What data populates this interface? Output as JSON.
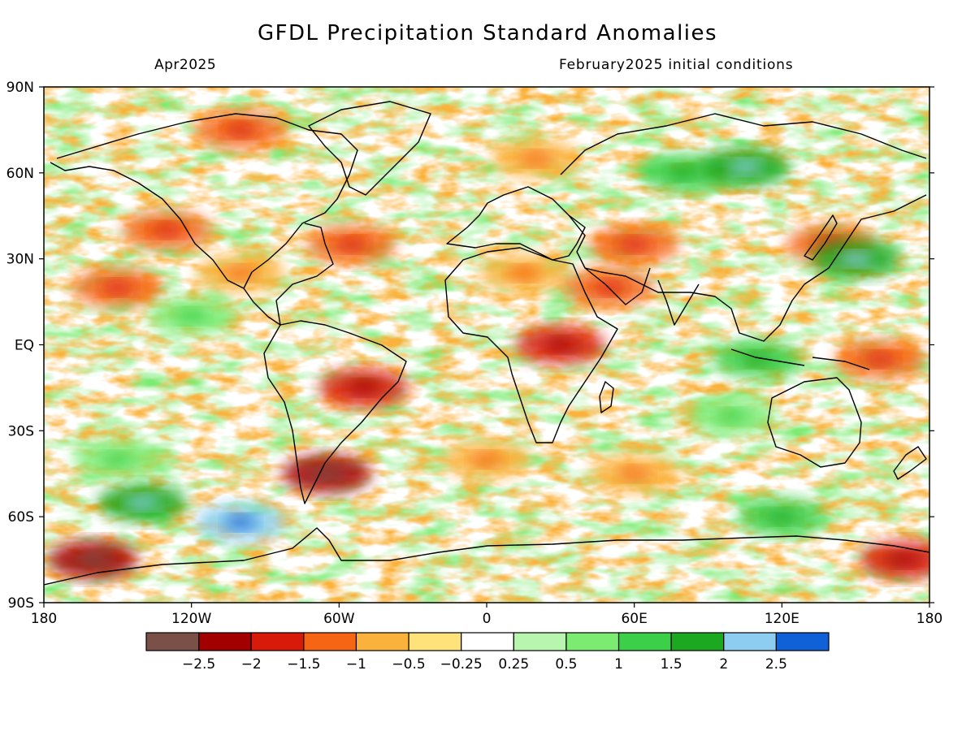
{
  "header": {
    "title": "GFDL Precipitation Standard Anomalies",
    "valid_month": "Apr2025",
    "init_label": "February2025 initial conditions"
  },
  "map": {
    "projection": "latlon",
    "lon_range": [
      -180,
      180
    ],
    "lat_range": [
      -90,
      90
    ],
    "lat_ticks": [
      {
        "value": 90,
        "label": "90N"
      },
      {
        "value": 60,
        "label": "60N"
      },
      {
        "value": 30,
        "label": "30N"
      },
      {
        "value": 0,
        "label": "EQ"
      },
      {
        "value": -30,
        "label": "30S"
      },
      {
        "value": -60,
        "label": "60S"
      },
      {
        "value": -90,
        "label": "90S"
      }
    ],
    "lon_ticks": [
      {
        "value": -180,
        "label": "180"
      },
      {
        "value": -120,
        "label": "120W"
      },
      {
        "value": -60,
        "label": "60W"
      },
      {
        "value": 0,
        "label": "0"
      },
      {
        "value": 60,
        "label": "60E"
      },
      {
        "value": 120,
        "label": "120E"
      },
      {
        "value": 180,
        "label": "180"
      }
    ],
    "grid": false,
    "colorbar": {
      "colors": [
        "#7a5048",
        "#a20000",
        "#d81a0a",
        "#f56514",
        "#fbb23c",
        "#ffe37a",
        "#ffffff",
        "#b8f5ae",
        "#7ceb72",
        "#3cd04a",
        "#1ca820",
        "#8ecdf2",
        "#1060d8"
      ],
      "labels": [
        "-2.5",
        "-2",
        "-1.5",
        "-1",
        "-0.5",
        "-0.25",
        "0.25",
        "0.5",
        "1",
        "1.5",
        "2",
        "2.5"
      ]
    }
  },
  "chart_data": {
    "type": "heatmap",
    "title": "GFDL Precipitation Standard Anomalies",
    "legend": "bottom",
    "xlim": [
      -180,
      180
    ],
    "ylim": [
      -90,
      90
    ],
    "levels": [
      -2.5,
      -2,
      -1.5,
      -1,
      -0.5,
      -0.25,
      0.25,
      0.5,
      1,
      1.5,
      2,
      2.5
    ],
    "anomaly_regions": [
      {
        "lon": -130,
        "lat": 40,
        "value": -1.2
      },
      {
        "lon": -150,
        "lat": 20,
        "value": -1.0
      },
      {
        "lon": -100,
        "lat": 75,
        "value": -1.0
      },
      {
        "lon": -55,
        "lat": 35,
        "value": -1.2
      },
      {
        "lon": -100,
        "lat": 25,
        "value": -0.6
      },
      {
        "lon": -120,
        "lat": 10,
        "value": 1.0
      },
      {
        "lon": -50,
        "lat": -15,
        "value": -1.8
      },
      {
        "lon": -65,
        "lat": -45,
        "value": -2.2
      },
      {
        "lon": 15,
        "lat": 25,
        "value": -0.6
      },
      {
        "lon": 30,
        "lat": 0,
        "value": -1.6
      },
      {
        "lon": 50,
        "lat": 20,
        "value": -1.0
      },
      {
        "lon": 60,
        "lat": 35,
        "value": -1.2
      },
      {
        "lon": 80,
        "lat": 60,
        "value": 1.5
      },
      {
        "lon": 105,
        "lat": 62,
        "value": 1.8
      },
      {
        "lon": 140,
        "lat": 35,
        "value": -1.2
      },
      {
        "lon": 150,
        "lat": 30,
        "value": 1.6
      },
      {
        "lon": 160,
        "lat": -5,
        "value": -1.2
      },
      {
        "lon": 110,
        "lat": -5,
        "value": 1.3
      },
      {
        "lon": -140,
        "lat": -55,
        "value": 1.8
      },
      {
        "lon": -100,
        "lat": -62,
        "value": 2.2
      },
      {
        "lon": 120,
        "lat": -60,
        "value": 1.4
      },
      {
        "lon": -160,
        "lat": -75,
        "value": -2.0
      },
      {
        "lon": 170,
        "lat": -75,
        "value": -1.6
      },
      {
        "lon": 0,
        "lat": -40,
        "value": -0.8
      },
      {
        "lon": 60,
        "lat": -45,
        "value": -0.9
      },
      {
        "lon": -150,
        "lat": -40,
        "value": 1.0
      },
      {
        "lon": 20,
        "lat": 65,
        "value": -0.8
      },
      {
        "lon": 100,
        "lat": -25,
        "value": 1.0
      }
    ]
  }
}
